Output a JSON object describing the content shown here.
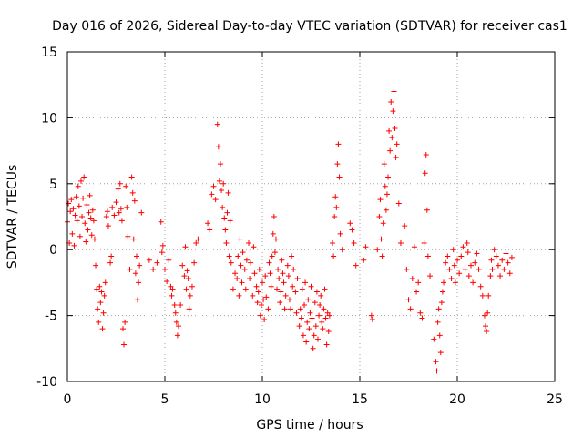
{
  "chart_data": {
    "type": "scatter",
    "title": "Day 016 of 2026, Sidereal Day-to-day VTEC variation (SDTVAR) for receiver cas1",
    "xlabel": "GPS time / hours",
    "ylabel": "SDTVAR / TECUs",
    "xlim": [
      0,
      25
    ],
    "ylim": [
      -10,
      15
    ],
    "xticks": [
      0,
      5,
      10,
      15,
      20,
      25
    ],
    "yticks": [
      -10,
      -5,
      0,
      5,
      10,
      15
    ],
    "xtick_labels": [
      "0",
      "5",
      "10",
      "15",
      "20",
      "25"
    ],
    "ytick_labels": [
      "-10",
      "-5",
      "0",
      "5",
      "10",
      "15"
    ],
    "grid": true,
    "marker": "plus",
    "color": "#ff0000",
    "series": [
      {
        "name": "SDTVAR",
        "points": [
          [
            0.0,
            2.1
          ],
          [
            0.05,
            3.5
          ],
          [
            0.1,
            0.5
          ],
          [
            0.15,
            2.9
          ],
          [
            0.2,
            3.8
          ],
          [
            0.25,
            1.2
          ],
          [
            0.3,
            3.1
          ],
          [
            0.35,
            0.3
          ],
          [
            0.4,
            2.6
          ],
          [
            0.45,
            4.0
          ],
          [
            0.5,
            2.2
          ],
          [
            0.55,
            4.8
          ],
          [
            0.6,
            3.3
          ],
          [
            0.65,
            1.0
          ],
          [
            0.7,
            5.2
          ],
          [
            0.75,
            2.5
          ],
          [
            0.8,
            3.9
          ],
          [
            0.85,
            5.5
          ],
          [
            0.9,
            2.0
          ],
          [
            0.95,
            0.6
          ],
          [
            1.0,
            3.4
          ],
          [
            1.05,
            1.5
          ],
          [
            1.1,
            2.8
          ],
          [
            1.15,
            4.1
          ],
          [
            1.2,
            2.4
          ],
          [
            1.25,
            1.1
          ],
          [
            1.3,
            3.0
          ],
          [
            1.35,
            2.2
          ],
          [
            1.4,
            0.8
          ],
          [
            1.45,
            -1.2
          ],
          [
            1.5,
            -3.0
          ],
          [
            1.55,
            -4.5
          ],
          [
            1.6,
            -5.5
          ],
          [
            1.65,
            -2.8
          ],
          [
            1.7,
            -4.0
          ],
          [
            1.75,
            -3.2
          ],
          [
            1.8,
            -6.0
          ],
          [
            1.85,
            -4.8
          ],
          [
            1.9,
            -3.5
          ],
          [
            1.95,
            -2.5
          ],
          [
            2.0,
            2.5
          ],
          [
            2.05,
            2.9
          ],
          [
            2.1,
            1.8
          ],
          [
            2.2,
            -1.0
          ],
          [
            2.25,
            -0.5
          ],
          [
            2.3,
            3.2
          ],
          [
            2.4,
            2.6
          ],
          [
            2.5,
            3.6
          ],
          [
            2.6,
            4.6
          ],
          [
            2.65,
            2.8
          ],
          [
            2.7,
            5.0
          ],
          [
            2.75,
            3.1
          ],
          [
            2.8,
            2.2
          ],
          [
            2.85,
            -6.0
          ],
          [
            2.9,
            -7.2
          ],
          [
            2.95,
            -5.5
          ],
          [
            3.0,
            4.8
          ],
          [
            3.05,
            3.2
          ],
          [
            3.1,
            1.0
          ],
          [
            3.2,
            -1.5
          ],
          [
            3.3,
            5.5
          ],
          [
            3.35,
            4.3
          ],
          [
            3.4,
            0.8
          ],
          [
            3.45,
            3.7
          ],
          [
            3.5,
            -1.8
          ],
          [
            3.55,
            -0.5
          ],
          [
            3.6,
            -3.8
          ],
          [
            3.65,
            -2.5
          ],
          [
            3.7,
            -1.2
          ],
          [
            3.8,
            2.8
          ],
          [
            4.2,
            -0.8
          ],
          [
            4.4,
            -1.5
          ],
          [
            4.6,
            -1.0
          ],
          [
            4.8,
            2.1
          ],
          [
            4.85,
            -0.2
          ],
          [
            4.9,
            0.3
          ],
          [
            5.0,
            -1.5
          ],
          [
            5.1,
            -2.4
          ],
          [
            5.2,
            -0.8
          ],
          [
            5.3,
            -2.8
          ],
          [
            5.35,
            -3.5
          ],
          [
            5.4,
            -3.0
          ],
          [
            5.5,
            -4.2
          ],
          [
            5.55,
            -4.8
          ],
          [
            5.6,
            -5.5
          ],
          [
            5.65,
            -6.5
          ],
          [
            5.7,
            -5.8
          ],
          [
            5.8,
            -4.2
          ],
          [
            5.9,
            -1.2
          ],
          [
            6.0,
            -2.0
          ],
          [
            6.05,
            0.2
          ],
          [
            6.1,
            -3.0
          ],
          [
            6.15,
            -1.6
          ],
          [
            6.2,
            -2.2
          ],
          [
            6.25,
            -4.5
          ],
          [
            6.3,
            -3.5
          ],
          [
            6.4,
            -2.8
          ],
          [
            6.5,
            -1.0
          ],
          [
            6.6,
            0.5
          ],
          [
            6.7,
            0.8
          ],
          [
            7.2,
            2.0
          ],
          [
            7.3,
            1.5
          ],
          [
            7.4,
            4.2
          ],
          [
            7.5,
            4.8
          ],
          [
            7.6,
            3.8
          ],
          [
            7.7,
            9.5
          ],
          [
            7.75,
            7.8
          ],
          [
            7.8,
            5.2
          ],
          [
            7.85,
            6.5
          ],
          [
            7.9,
            4.5
          ],
          [
            7.95,
            3.2
          ],
          [
            8.0,
            5.0
          ],
          [
            8.05,
            2.4
          ],
          [
            8.1,
            1.5
          ],
          [
            8.15,
            0.5
          ],
          [
            8.2,
            2.8
          ],
          [
            8.25,
            4.3
          ],
          [
            8.3,
            -0.5
          ],
          [
            8.35,
            2.2
          ],
          [
            8.4,
            -1.0
          ],
          [
            8.5,
            -3.0
          ],
          [
            8.6,
            -1.8
          ],
          [
            8.7,
            -2.2
          ],
          [
            8.75,
            -0.5
          ],
          [
            8.8,
            -3.5
          ],
          [
            8.85,
            0.8
          ],
          [
            8.9,
            -1.2
          ],
          [
            8.95,
            -2.5
          ],
          [
            9.0,
            -0.2
          ],
          [
            9.1,
            -1.5
          ],
          [
            9.15,
            -3.0
          ],
          [
            9.2,
            -0.8
          ],
          [
            9.3,
            0.5
          ],
          [
            9.35,
            -2.2
          ],
          [
            9.4,
            -1.0
          ],
          [
            9.5,
            -3.5
          ],
          [
            9.55,
            0.2
          ],
          [
            9.6,
            -1.8
          ],
          [
            9.7,
            -2.8
          ],
          [
            9.75,
            -4.0
          ],
          [
            9.8,
            -3.2
          ],
          [
            9.85,
            -1.5
          ],
          [
            9.9,
            -5.0
          ],
          [
            9.95,
            -4.2
          ],
          [
            10.0,
            -2.5
          ],
          [
            10.05,
            -3.8
          ],
          [
            10.1,
            -5.3
          ],
          [
            10.15,
            -2.0
          ],
          [
            10.2,
            -3.6
          ],
          [
            10.3,
            -4.5
          ],
          [
            10.35,
            -1.0
          ],
          [
            10.4,
            -1.8
          ],
          [
            10.45,
            -2.8
          ],
          [
            10.5,
            -0.5
          ],
          [
            10.55,
            1.2
          ],
          [
            10.6,
            2.5
          ],
          [
            10.65,
            -0.2
          ],
          [
            10.7,
            0.8
          ],
          [
            10.75,
            -3.0
          ],
          [
            10.8,
            -1.5
          ],
          [
            10.85,
            -2.2
          ],
          [
            10.9,
            -4.0
          ],
          [
            10.95,
            -3.2
          ],
          [
            11.0,
            -0.8
          ],
          [
            11.05,
            -1.8
          ],
          [
            11.1,
            -2.5
          ],
          [
            11.15,
            -4.5
          ],
          [
            11.2,
            -3.5
          ],
          [
            11.3,
            -1.2
          ],
          [
            11.35,
            -2.0
          ],
          [
            11.4,
            -3.8
          ],
          [
            11.45,
            -4.5
          ],
          [
            11.5,
            -0.5
          ],
          [
            11.55,
            -2.8
          ],
          [
            11.6,
            -1.5
          ],
          [
            11.7,
            -3.2
          ],
          [
            11.75,
            -4.8
          ],
          [
            11.8,
            -2.2
          ],
          [
            11.9,
            -5.8
          ],
          [
            11.95,
            -4.5
          ],
          [
            12.0,
            -5.2
          ],
          [
            12.05,
            -3.0
          ],
          [
            12.1,
            -6.5
          ],
          [
            12.15,
            -4.2
          ],
          [
            12.2,
            -2.5
          ],
          [
            12.25,
            -7.0
          ],
          [
            12.3,
            -5.5
          ],
          [
            12.35,
            -3.8
          ],
          [
            12.4,
            -6.0
          ],
          [
            12.45,
            -4.8
          ],
          [
            12.5,
            -2.8
          ],
          [
            12.55,
            -5.2
          ],
          [
            12.6,
            -7.5
          ],
          [
            12.65,
            -6.5
          ],
          [
            12.7,
            -4.0
          ],
          [
            12.75,
            -5.8
          ],
          [
            12.8,
            -3.2
          ],
          [
            12.85,
            -6.8
          ],
          [
            12.9,
            -5.0
          ],
          [
            12.95,
            -4.2
          ],
          [
            13.0,
            -3.5
          ],
          [
            13.05,
            -5.5
          ],
          [
            13.1,
            -6.0
          ],
          [
            13.15,
            -4.5
          ],
          [
            13.2,
            -3.0
          ],
          [
            13.25,
            -5.2
          ],
          [
            13.3,
            -7.2
          ],
          [
            13.35,
            -4.8
          ],
          [
            13.4,
            -6.2
          ],
          [
            13.45,
            -5.0
          ],
          [
            13.6,
            0.5
          ],
          [
            13.65,
            -0.5
          ],
          [
            13.7,
            2.5
          ],
          [
            13.75,
            4.0
          ],
          [
            13.8,
            3.2
          ],
          [
            13.85,
            6.5
          ],
          [
            13.9,
            8.0
          ],
          [
            13.95,
            5.5
          ],
          [
            14.0,
            1.2
          ],
          [
            14.1,
            0.0
          ],
          [
            14.5,
            2.0
          ],
          [
            14.6,
            1.5
          ],
          [
            14.7,
            0.5
          ],
          [
            14.8,
            -1.2
          ],
          [
            15.2,
            -0.8
          ],
          [
            15.3,
            0.2
          ],
          [
            15.6,
            -5.0
          ],
          [
            15.65,
            -5.3
          ],
          [
            15.9,
            0.0
          ],
          [
            16.0,
            2.5
          ],
          [
            16.05,
            3.8
          ],
          [
            16.1,
            0.8
          ],
          [
            16.15,
            -0.5
          ],
          [
            16.2,
            2.0
          ],
          [
            16.25,
            6.5
          ],
          [
            16.3,
            4.8
          ],
          [
            16.35,
            3.0
          ],
          [
            16.4,
            4.2
          ],
          [
            16.45,
            5.5
          ],
          [
            16.5,
            9.0
          ],
          [
            16.55,
            7.5
          ],
          [
            16.6,
            11.2
          ],
          [
            16.65,
            8.5
          ],
          [
            16.7,
            10.5
          ],
          [
            16.75,
            12.0
          ],
          [
            16.8,
            9.2
          ],
          [
            16.85,
            7.0
          ],
          [
            16.9,
            8.0
          ],
          [
            17.0,
            3.5
          ],
          [
            17.1,
            0.5
          ],
          [
            17.3,
            1.8
          ],
          [
            17.4,
            -1.5
          ],
          [
            17.5,
            -3.8
          ],
          [
            17.6,
            -4.5
          ],
          [
            17.7,
            -2.2
          ],
          [
            17.8,
            0.2
          ],
          [
            17.9,
            -3.2
          ],
          [
            18.0,
            -2.5
          ],
          [
            18.1,
            -4.8
          ],
          [
            18.2,
            -5.2
          ],
          [
            18.3,
            0.5
          ],
          [
            18.35,
            5.8
          ],
          [
            18.4,
            7.2
          ],
          [
            18.45,
            3.0
          ],
          [
            18.5,
            -0.5
          ],
          [
            18.6,
            -2.0
          ],
          [
            18.8,
            -6.8
          ],
          [
            18.9,
            -8.5
          ],
          [
            18.95,
            -9.2
          ],
          [
            19.0,
            -5.5
          ],
          [
            19.05,
            -4.5
          ],
          [
            19.1,
            -6.5
          ],
          [
            19.15,
            -7.8
          ],
          [
            19.2,
            -4.0
          ],
          [
            19.25,
            -3.2
          ],
          [
            19.3,
            -2.5
          ],
          [
            19.4,
            -1.0
          ],
          [
            19.5,
            -0.5
          ],
          [
            19.6,
            -1.5
          ],
          [
            19.7,
            -2.2
          ],
          [
            19.8,
            0.0
          ],
          [
            19.85,
            -1.2
          ],
          [
            19.9,
            -2.5
          ],
          [
            20.0,
            -0.8
          ],
          [
            20.1,
            -1.8
          ],
          [
            20.2,
            -0.5
          ],
          [
            20.3,
            0.2
          ],
          [
            20.4,
            -1.5
          ],
          [
            20.5,
            0.5
          ],
          [
            20.55,
            -0.2
          ],
          [
            20.6,
            -2.0
          ],
          [
            20.7,
            -1.2
          ],
          [
            20.8,
            -2.5
          ],
          [
            20.9,
            -1.0
          ],
          [
            21.0,
            -0.3
          ],
          [
            21.1,
            -1.5
          ],
          [
            21.2,
            -2.8
          ],
          [
            21.3,
            -3.5
          ],
          [
            21.4,
            -5.0
          ],
          [
            21.45,
            -5.8
          ],
          [
            21.5,
            -6.2
          ],
          [
            21.55,
            -4.8
          ],
          [
            21.6,
            -3.5
          ],
          [
            21.7,
            -2.0
          ],
          [
            21.75,
            -0.8
          ],
          [
            21.8,
            -1.5
          ],
          [
            21.9,
            0.0
          ],
          [
            22.0,
            -0.5
          ],
          [
            22.1,
            -1.2
          ],
          [
            22.2,
            -2.0
          ],
          [
            22.3,
            -0.8
          ],
          [
            22.4,
            -1.5
          ],
          [
            22.5,
            -0.3
          ],
          [
            22.6,
            -1.0
          ],
          [
            22.7,
            -1.8
          ],
          [
            22.8,
            -0.6
          ]
        ]
      }
    ]
  }
}
